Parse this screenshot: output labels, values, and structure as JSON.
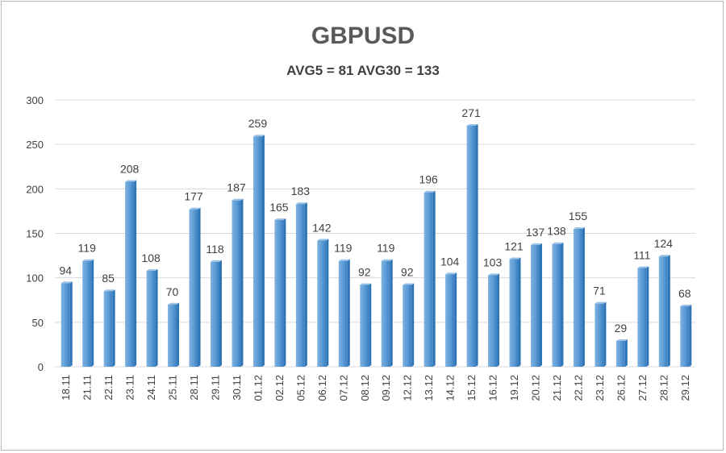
{
  "chart_data": {
    "type": "bar",
    "title": "GBPUSD",
    "subtitle": "AVG5 = 81 AVG30 = 133",
    "categories": [
      "18.11",
      "21.11",
      "22.11",
      "23.11",
      "24.11",
      "25.11",
      "28.11",
      "29.11",
      "30.11",
      "01.12",
      "02.12",
      "05.12",
      "06.12",
      "07.12",
      "08.12",
      "09.12",
      "12.12",
      "13.12",
      "14.12",
      "15.12",
      "16.12",
      "19.12",
      "20.12",
      "21.12",
      "22.12",
      "23.12",
      "26.12",
      "27.12",
      "28.12",
      "29.12"
    ],
    "values": [
      94,
      119,
      85,
      208,
      108,
      70,
      177,
      118,
      187,
      259,
      165,
      183,
      142,
      119,
      92,
      119,
      92,
      196,
      104,
      271,
      103,
      121,
      137,
      138,
      155,
      71,
      29,
      111,
      124,
      68
    ],
    "ylim": [
      0,
      300
    ],
    "yticks": [
      0,
      50,
      100,
      150,
      200,
      250,
      300
    ],
    "grid": true,
    "legend": "none",
    "colors": {
      "bar": "#5b9bd5",
      "bar_dark": "#2e75b6",
      "grid": "#d9d9d9",
      "text": "#404040"
    }
  }
}
